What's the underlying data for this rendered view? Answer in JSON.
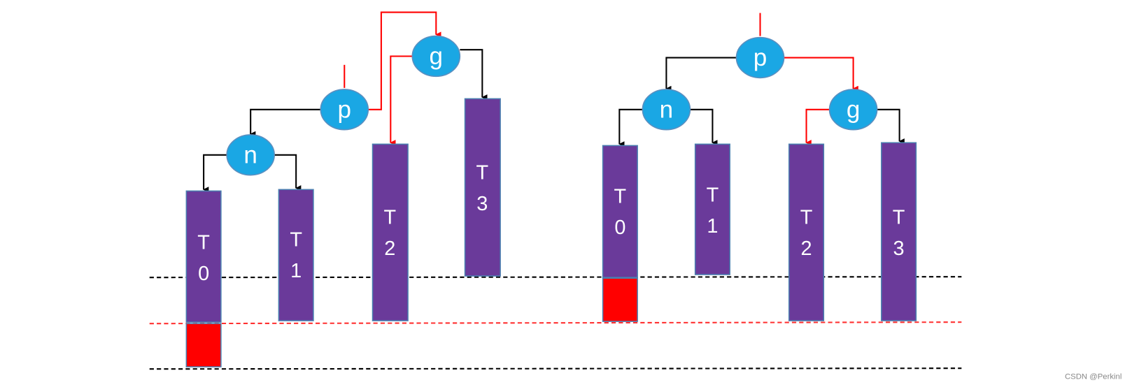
{
  "left": {
    "nodes": [
      "g",
      "p",
      "n"
    ],
    "subtrees": [
      {
        "letter": "T",
        "index": "0"
      },
      {
        "letter": "T",
        "index": "1"
      },
      {
        "letter": "T",
        "index": "2"
      },
      {
        "letter": "T",
        "index": "3"
      }
    ]
  },
  "right": {
    "nodes": [
      "p",
      "n",
      "g"
    ],
    "subtrees": [
      {
        "letter": "T",
        "index": "0"
      },
      {
        "letter": "T",
        "index": "1"
      },
      {
        "letter": "T",
        "index": "2"
      },
      {
        "letter": "T",
        "index": "3"
      }
    ]
  },
  "watermark": "CSDN @Perkinl"
}
